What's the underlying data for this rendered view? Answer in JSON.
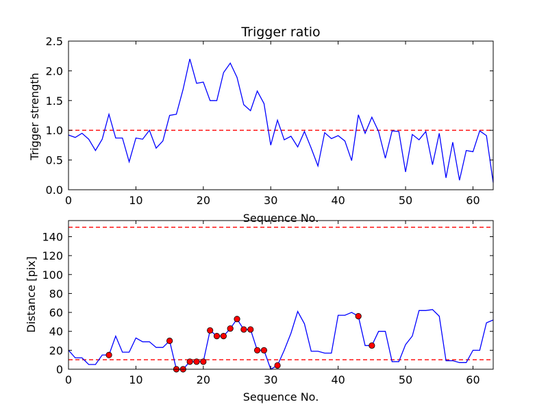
{
  "chart_data": [
    {
      "type": "line",
      "title": "Trigger ratio",
      "xlabel": "Sequence No.",
      "ylabel": "Trigger strength",
      "xlim": [
        0,
        63
      ],
      "ylim": [
        0,
        2.5
      ],
      "xticks": [
        "0",
        "10",
        "20",
        "30",
        "40",
        "50",
        "60"
      ],
      "yticks": [
        "0.0",
        "0.5",
        "1.0",
        "1.5",
        "2.0",
        "2.5"
      ],
      "grid": false,
      "series": [
        {
          "name": "trigger strength",
          "color": "#0000ff",
          "x": [
            0,
            1,
            2,
            3,
            4,
            5,
            6,
            7,
            8,
            9,
            10,
            11,
            12,
            13,
            14,
            15,
            16,
            17,
            18,
            19,
            20,
            21,
            22,
            23,
            24,
            25,
            26,
            27,
            28,
            29,
            30,
            31,
            32,
            33,
            34,
            35,
            36,
            37,
            38,
            39,
            40,
            41,
            42,
            43,
            44,
            45,
            46,
            47,
            48,
            49,
            50,
            51,
            52,
            53,
            54,
            55,
            56,
            57,
            58,
            59,
            60,
            61,
            62,
            63
          ],
          "values": [
            0.92,
            0.88,
            0.95,
            0.85,
            0.66,
            0.85,
            1.27,
            0.87,
            0.87,
            0.47,
            0.87,
            0.85,
            1.0,
            0.7,
            0.82,
            1.25,
            1.27,
            1.69,
            2.2,
            1.79,
            1.81,
            1.5,
            1.5,
            1.97,
            2.13,
            1.89,
            1.43,
            1.33,
            1.66,
            1.45,
            0.75,
            1.17,
            0.84,
            0.9,
            0.72,
            0.98,
            0.7,
            0.4,
            0.96,
            0.86,
            0.91,
            0.82,
            0.49,
            1.26,
            0.95,
            1.22,
            0.98,
            0.53,
            0.99,
            0.98,
            0.3,
            0.93,
            0.84,
            0.98,
            0.42,
            0.95,
            0.2,
            0.8,
            0.16,
            0.66,
            0.64,
            0.99,
            0.91,
            0.12
          ]
        }
      ],
      "reference_lines": [
        {
          "y": 1.0,
          "color": "#ff0000",
          "style": "dashed"
        }
      ]
    },
    {
      "type": "line",
      "title": "",
      "xlabel": "Sequence No.",
      "ylabel": "Distance [pix]",
      "xlim": [
        0,
        63
      ],
      "ylim": [
        0,
        157
      ],
      "xticks": [
        "0",
        "10",
        "20",
        "30",
        "40",
        "50",
        "60"
      ],
      "yticks": [
        "0",
        "20",
        "40",
        "60",
        "80",
        "100",
        "120",
        "140"
      ],
      "grid": false,
      "series": [
        {
          "name": "distance",
          "color": "#0000ff",
          "x": [
            0,
            1,
            2,
            3,
            4,
            5,
            6,
            7,
            8,
            9,
            10,
            11,
            12,
            13,
            14,
            15,
            16,
            17,
            18,
            19,
            20,
            21,
            22,
            23,
            24,
            25,
            26,
            27,
            28,
            29,
            30,
            31,
            32,
            33,
            34,
            35,
            36,
            37,
            38,
            39,
            40,
            41,
            42,
            43,
            44,
            45,
            46,
            47,
            48,
            49,
            50,
            51,
            52,
            53,
            54,
            55,
            56,
            57,
            58,
            59,
            60,
            61,
            62,
            63
          ],
          "values": [
            20,
            12,
            12,
            5,
            5,
            15,
            15,
            35,
            18,
            18,
            33,
            29,
            29,
            23,
            23,
            30,
            0,
            0,
            8,
            8,
            8,
            41,
            35,
            35,
            43,
            53,
            42,
            42,
            20,
            20,
            0,
            4,
            20,
            38,
            61,
            48,
            19,
            19,
            17,
            17,
            57,
            57,
            60,
            56,
            25,
            25,
            40,
            40,
            8,
            8,
            26,
            35,
            62,
            62,
            63,
            56,
            9,
            9,
            7,
            7,
            20,
            20,
            49,
            52
          ]
        },
        {
          "name": "flagged points",
          "color": "#ff0000",
          "marker": "circle",
          "x": [
            6,
            15,
            16,
            17,
            18,
            19,
            20,
            21,
            22,
            23,
            24,
            25,
            26,
            27,
            28,
            29,
            31,
            43,
            45
          ],
          "values": [
            15,
            30,
            0,
            0,
            8,
            8,
            8,
            41,
            35,
            35,
            43,
            53,
            42,
            42,
            20,
            20,
            4,
            56,
            25
          ]
        }
      ],
      "reference_lines": [
        {
          "y": 150,
          "color": "#ff0000",
          "style": "dashed"
        },
        {
          "y": 10,
          "color": "#ff0000",
          "style": "dashed"
        }
      ]
    }
  ]
}
